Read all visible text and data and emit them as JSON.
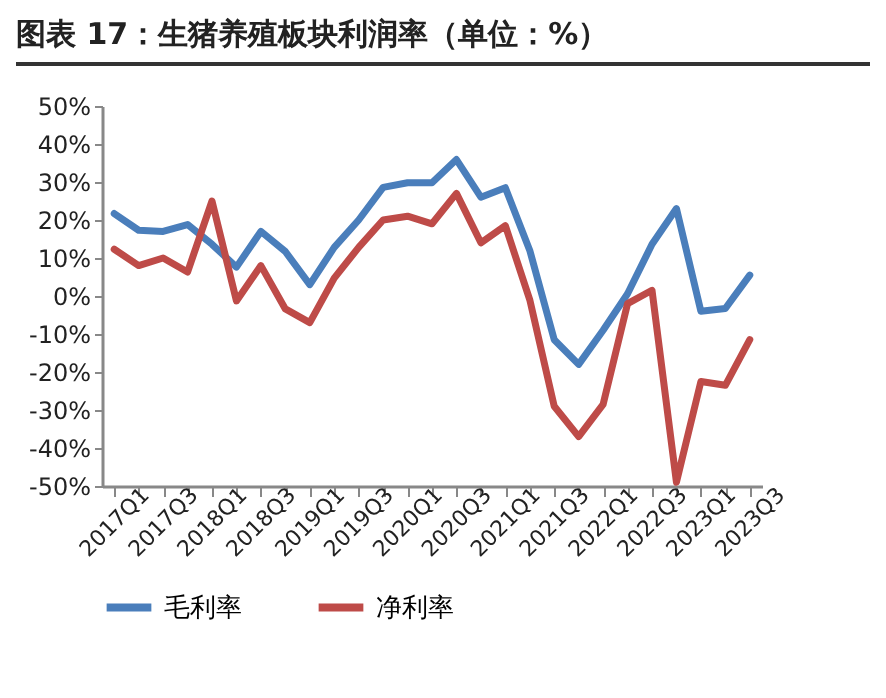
{
  "chart_data": {
    "type": "line",
    "title": "图表 17：生猪养殖板块利润率（单位：%）",
    "categories": [
      "2017Q1",
      null,
      "2017Q3",
      null,
      "2018Q1",
      null,
      "2018Q3",
      null,
      "2019Q1",
      null,
      "2019Q3",
      null,
      "2020Q1",
      null,
      "2020Q3",
      null,
      "2021Q1",
      null,
      "2021Q3",
      null,
      "2022Q1",
      null,
      "2022Q3",
      null,
      "2023Q1",
      null,
      "2023Q3"
    ],
    "series": [
      {
        "name": "毛利率",
        "color": "#4a7ebb",
        "values": [
          21.7,
          17.3,
          17,
          18.8,
          13.6,
          7.6,
          17,
          11.7,
          3,
          12.8,
          20,
          28.6,
          29.8,
          29.8,
          35.9,
          26,
          28.5,
          12,
          -11.5,
          -18,
          -9,
          0.6,
          13.6,
          23,
          -4,
          -3.3,
          5.5
        ]
      },
      {
        "name": "净利率",
        "color": "#be4b48",
        "values": [
          12.3,
          8,
          10,
          6.3,
          25,
          -1.3,
          8,
          -3.4,
          -7,
          4.7,
          12.8,
          20,
          21,
          19,
          27,
          14,
          18.5,
          -1,
          -29,
          -37,
          -28.5,
          -2,
          1.5,
          -49,
          -22.5,
          -23.5,
          -11.5
        ]
      }
    ],
    "ylim": [
      -50,
      50
    ],
    "yticks": [
      {
        "value": -50,
        "label": "-50%"
      },
      {
        "value": -40,
        "label": "-40%"
      },
      {
        "value": -30,
        "label": "-30%"
      },
      {
        "value": -20,
        "label": "-20%"
      },
      {
        "value": -10,
        "label": "-10%"
      },
      {
        "value": 0,
        "label": "0%"
      },
      {
        "value": 10,
        "label": "10%"
      },
      {
        "value": 20,
        "label": "20%"
      },
      {
        "value": 30,
        "label": "30%"
      },
      {
        "value": 40,
        "label": "40%"
      },
      {
        "value": 50,
        "label": "50%"
      }
    ],
    "grid": false,
    "legend": "bottom"
  }
}
